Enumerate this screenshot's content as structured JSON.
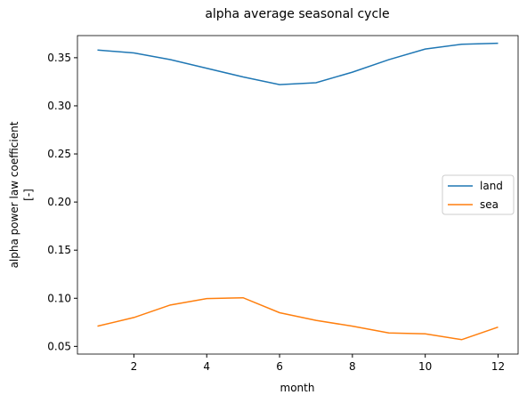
{
  "chart_data": {
    "type": "line",
    "title": "alpha average seasonal cycle",
    "xlabel": "month",
    "ylabel": [
      "alpha power law coefficient",
      "[-]"
    ],
    "x": [
      1,
      2,
      3,
      4,
      5,
      6,
      7,
      8,
      9,
      10,
      11,
      12
    ],
    "series": [
      {
        "name": "land",
        "color": "#1f77b4",
        "values": [
          0.358,
          0.355,
          0.348,
          0.339,
          0.33,
          0.322,
          0.324,
          0.335,
          0.348,
          0.359,
          0.364,
          0.365
        ]
      },
      {
        "name": "sea",
        "color": "#ff7f0e",
        "values": [
          0.071,
          0.08,
          0.093,
          0.0997,
          0.1005,
          0.085,
          0.077,
          0.071,
          0.064,
          0.063,
          0.057,
          0.07
        ]
      }
    ],
    "xlim": [
      0.45,
      12.55
    ],
    "xticks": [
      2,
      4,
      6,
      8,
      10,
      12
    ],
    "ylim": [
      0.042,
      0.373
    ],
    "yticks": [
      0.05,
      {
        "value": 0.1,
        "label": "0.10"
      },
      0.15,
      {
        "value": 0.2,
        "label": "0.20"
      },
      0.25,
      {
        "value": 0.3,
        "label": "0.30"
      },
      0.35
    ],
    "legend": "right"
  }
}
